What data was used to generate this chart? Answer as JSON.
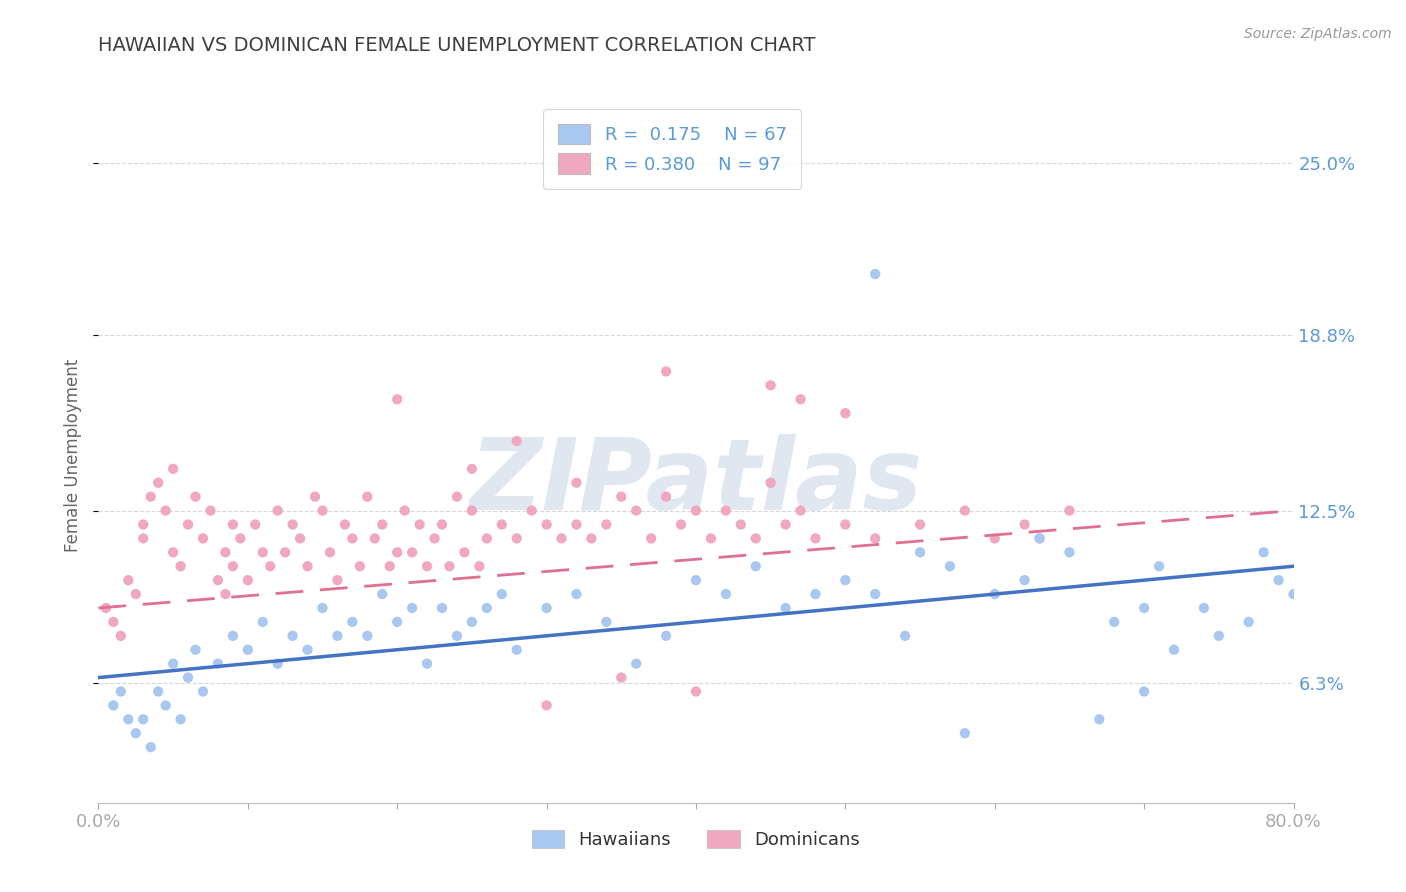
{
  "title": "HAWAIIAN VS DOMINICAN FEMALE UNEMPLOYMENT CORRELATION CHART",
  "source": "Source: ZipAtlas.com",
  "ylabel": "Female Unemployment",
  "ytick_labels": [
    "6.3%",
    "12.5%",
    "18.8%",
    "25.0%"
  ],
  "ytick_values": [
    6.3,
    12.5,
    18.8,
    25.0
  ],
  "xlim": [
    0.0,
    80.0
  ],
  "ylim": [
    2.0,
    27.0
  ],
  "hawaiians_R": 0.175,
  "hawaiians_N": 67,
  "dominicans_R": 0.38,
  "dominicans_N": 97,
  "hawaiians_color": "#a8c8f0",
  "dominicans_color": "#f0a8c0",
  "hawaiians_line_color": "#4472c4",
  "dominicans_line_color": "#e07090",
  "grid_color": "#c8c8c8",
  "axis_label_color": "#5b9bd5",
  "title_color": "#404040",
  "watermark_color": "#ccd8e8",
  "hawaii_line_start": 6.5,
  "hawaii_line_end": 10.5,
  "dominican_line_start": 9.0,
  "dominican_line_end": 12.5,
  "hawaiians_x": [
    1.0,
    1.5,
    2.0,
    2.5,
    3.0,
    3.5,
    4.0,
    4.5,
    5.0,
    5.5,
    6.0,
    6.5,
    7.0,
    8.0,
    9.0,
    10.0,
    11.0,
    12.0,
    13.0,
    14.0,
    15.0,
    16.0,
    17.0,
    18.0,
    19.0,
    20.0,
    21.0,
    22.0,
    23.0,
    24.0,
    25.0,
    26.0,
    27.0,
    28.0,
    30.0,
    32.0,
    34.0,
    36.0,
    38.0,
    40.0,
    42.0,
    44.0,
    46.0,
    48.0,
    50.0,
    52.0,
    54.0,
    55.0,
    57.0,
    58.0,
    60.0,
    62.0,
    63.0,
    65.0,
    67.0,
    68.0,
    70.0,
    71.0,
    72.0,
    74.0,
    75.0,
    77.0,
    78.0,
    79.0,
    80.0,
    52.0,
    70.0
  ],
  "hawaiians_y": [
    5.5,
    6.0,
    5.0,
    4.5,
    5.0,
    4.0,
    6.0,
    5.5,
    7.0,
    5.0,
    6.5,
    7.5,
    6.0,
    7.0,
    8.0,
    7.5,
    8.5,
    7.0,
    8.0,
    7.5,
    9.0,
    8.0,
    8.5,
    8.0,
    9.5,
    8.5,
    9.0,
    7.0,
    9.0,
    8.0,
    8.5,
    9.0,
    9.5,
    7.5,
    9.0,
    9.5,
    8.5,
    7.0,
    8.0,
    10.0,
    9.5,
    10.5,
    9.0,
    9.5,
    10.0,
    9.5,
    8.0,
    11.0,
    10.5,
    4.5,
    9.5,
    10.0,
    11.5,
    11.0,
    5.0,
    8.5,
    9.0,
    10.5,
    7.5,
    9.0,
    8.0,
    8.5,
    11.0,
    10.0,
    9.5,
    21.0,
    6.0
  ],
  "dominicans_x": [
    0.5,
    1.0,
    1.5,
    2.0,
    2.5,
    3.0,
    3.0,
    3.5,
    4.0,
    4.5,
    5.0,
    5.0,
    5.5,
    6.0,
    6.5,
    7.0,
    7.5,
    8.0,
    8.5,
    8.5,
    9.0,
    9.0,
    9.5,
    10.0,
    10.5,
    11.0,
    11.5,
    12.0,
    12.5,
    13.0,
    13.5,
    14.0,
    14.5,
    15.0,
    15.5,
    16.0,
    16.5,
    17.0,
    17.5,
    18.0,
    18.5,
    19.0,
    19.5,
    20.0,
    20.5,
    21.0,
    21.5,
    22.0,
    22.5,
    23.0,
    23.5,
    24.0,
    24.5,
    25.0,
    25.5,
    26.0,
    27.0,
    28.0,
    29.0,
    30.0,
    30.0,
    31.0,
    32.0,
    33.0,
    34.0,
    35.0,
    35.0,
    36.0,
    37.0,
    38.0,
    39.0,
    40.0,
    40.0,
    41.0,
    42.0,
    43.0,
    44.0,
    45.0,
    46.0,
    47.0,
    48.0,
    50.0,
    52.0,
    55.0,
    58.0,
    60.0,
    62.0,
    63.0,
    65.0,
    45.0,
    47.0,
    38.0,
    50.0,
    28.0,
    32.0,
    25.0,
    20.0
  ],
  "dominicans_y": [
    9.0,
    8.5,
    8.0,
    10.0,
    9.5,
    11.5,
    12.0,
    13.0,
    13.5,
    12.5,
    11.0,
    14.0,
    10.5,
    12.0,
    13.0,
    11.5,
    12.5,
    10.0,
    9.5,
    11.0,
    12.0,
    10.5,
    11.5,
    10.0,
    12.0,
    11.0,
    10.5,
    12.5,
    11.0,
    12.0,
    11.5,
    10.5,
    13.0,
    12.5,
    11.0,
    10.0,
    12.0,
    11.5,
    10.5,
    13.0,
    11.5,
    12.0,
    10.5,
    11.0,
    12.5,
    11.0,
    12.0,
    10.5,
    11.5,
    12.0,
    10.5,
    13.0,
    11.0,
    12.5,
    10.5,
    11.5,
    12.0,
    11.5,
    12.5,
    12.0,
    5.5,
    11.5,
    12.0,
    11.5,
    12.0,
    13.0,
    6.5,
    12.5,
    11.5,
    13.0,
    12.0,
    12.5,
    6.0,
    11.5,
    12.5,
    12.0,
    11.5,
    13.5,
    12.0,
    12.5,
    11.5,
    12.0,
    11.5,
    12.0,
    12.5,
    11.5,
    12.0,
    11.5,
    12.5,
    17.0,
    16.5,
    17.5,
    16.0,
    15.0,
    13.5,
    14.0,
    16.5
  ]
}
